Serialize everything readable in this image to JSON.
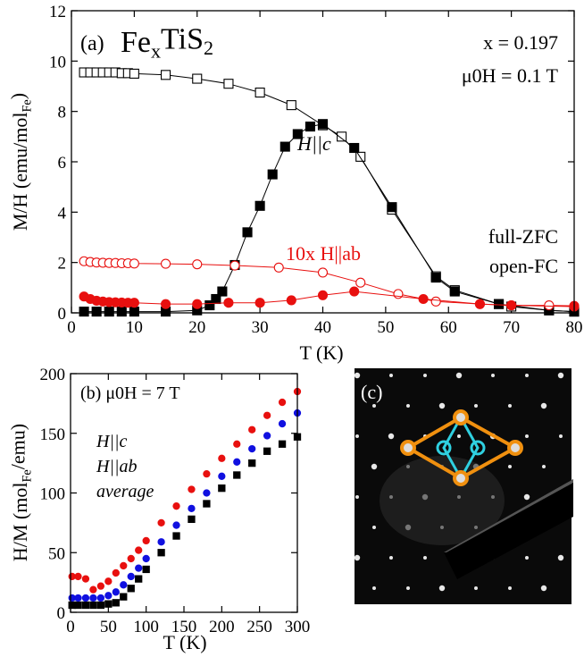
{
  "chart_data": [
    {
      "type": "scatter",
      "panel_label": "(a)",
      "title": [
        "Fe",
        "x",
        "TiS",
        "2"
      ],
      "xlabel": "T (K)",
      "ylabel": [
        "M/H (emu/mol",
        "Fe",
        ")"
      ],
      "annotations": [
        "x = 0.197",
        "μ0H = 0.1 T",
        "H||c",
        "10x H||ab",
        "full-ZFC",
        "open-FC"
      ],
      "xlim": [
        0,
        80
      ],
      "xticks": [
        0,
        10,
        20,
        30,
        40,
        50,
        60,
        70,
        80
      ],
      "ylim": [
        0,
        12
      ],
      "yticks": [
        0,
        2,
        4,
        6,
        8,
        10,
        12
      ],
      "line": true,
      "series": [
        {
          "color": "#000000",
          "marker": "square",
          "filled": false,
          "x": [
            2,
            3,
            4,
            5,
            6,
            7,
            8,
            9,
            10,
            15,
            20,
            25,
            30,
            35,
            40,
            43,
            46,
            51,
            58,
            61,
            68,
            70,
            76,
            80
          ],
          "values": [
            9.55,
            9.55,
            9.55,
            9.55,
            9.55,
            9.55,
            9.52,
            9.52,
            9.5,
            9.45,
            9.3,
            9.1,
            8.75,
            8.25,
            7.45,
            7.0,
            6.2,
            4.1,
            1.45,
            0.9,
            0.35,
            0.25,
            0.1,
            0.05
          ]
        },
        {
          "color": "#000000",
          "marker": "square",
          "filled": true,
          "x": [
            2,
            4,
            6,
            8,
            10,
            15,
            20,
            22,
            23,
            24,
            26,
            28,
            30,
            32,
            34,
            36,
            38,
            40,
            45,
            51,
            58,
            61,
            68,
            76,
            80
          ],
          "values": [
            0.05,
            0.05,
            0.05,
            0.05,
            0.05,
            0.05,
            0.1,
            0.3,
            0.55,
            0.85,
            1.9,
            3.2,
            4.25,
            5.5,
            6.6,
            7.1,
            7.4,
            7.5,
            6.55,
            4.2,
            1.4,
            0.85,
            0.35,
            0.1,
            0.05
          ]
        },
        {
          "color": "#e8100f",
          "marker": "circle",
          "filled": false,
          "x": [
            2,
            3,
            4,
            5,
            6,
            7,
            8,
            9,
            10,
            15,
            20,
            26,
            33,
            40,
            46,
            52,
            58,
            65,
            70,
            76,
            80
          ],
          "values": [
            2.05,
            2.02,
            2.0,
            1.99,
            1.98,
            1.98,
            1.97,
            1.97,
            1.96,
            1.95,
            1.93,
            1.88,
            1.8,
            1.6,
            1.2,
            0.75,
            0.45,
            0.35,
            0.3,
            0.3,
            0.28
          ]
        },
        {
          "color": "#e8100f",
          "marker": "circle",
          "filled": true,
          "x": [
            2,
            3,
            4,
            5,
            6,
            7,
            8,
            9,
            10,
            15,
            20,
            25,
            30,
            35,
            40,
            45,
            56,
            65,
            70,
            80
          ],
          "values": [
            0.65,
            0.55,
            0.48,
            0.45,
            0.43,
            0.42,
            0.41,
            0.4,
            0.4,
            0.35,
            0.35,
            0.4,
            0.4,
            0.5,
            0.7,
            0.85,
            0.55,
            0.35,
            0.3,
            0.25
          ]
        }
      ]
    },
    {
      "type": "scatter",
      "xlabel": "T (K)",
      "ylabel": [
        "H/M (mol",
        "Fe",
        "/emu)"
      ],
      "annotations": [
        "(b) μ0H = 7 T"
      ],
      "xlim": [
        0,
        300
      ],
      "xticks": [
        0,
        50,
        100,
        150,
        200,
        250,
        300
      ],
      "ylim": [
        0,
        200
      ],
      "yticks": [
        0,
        50,
        100,
        150,
        200
      ],
      "line": false,
      "series": [
        {
          "name": "H||c",
          "color": "#000000",
          "marker": "square",
          "filled": true,
          "x": [
            2,
            10,
            20,
            30,
            40,
            50,
            60,
            70,
            80,
            90,
            100,
            120,
            140,
            160,
            180,
            200,
            220,
            240,
            260,
            280,
            300
          ],
          "values": [
            6,
            6,
            6,
            6,
            6,
            7,
            8,
            13,
            20,
            28,
            36,
            50,
            64,
            78,
            91,
            104,
            115,
            125,
            135,
            141,
            147
          ]
        },
        {
          "name": "H||ab",
          "color": "#e8100f",
          "marker": "circle",
          "filled": true,
          "x": [
            2,
            10,
            20,
            30,
            40,
            50,
            60,
            70,
            80,
            90,
            100,
            120,
            140,
            160,
            180,
            200,
            220,
            240,
            260,
            280,
            300
          ],
          "values": [
            30,
            30,
            28,
            19,
            22,
            26,
            33,
            39,
            45,
            52,
            60,
            75,
            89,
            103,
            116,
            129,
            141,
            153,
            165,
            176,
            185
          ]
        },
        {
          "name": "average",
          "color": "#1010e0",
          "marker": "circle",
          "filled": true,
          "x": [
            2,
            10,
            20,
            30,
            40,
            50,
            60,
            70,
            80,
            90,
            100,
            120,
            140,
            160,
            180,
            200,
            220,
            240,
            260,
            280,
            300
          ],
          "values": [
            12,
            12,
            12,
            12,
            12,
            14,
            17,
            23,
            30,
            37,
            45,
            59,
            73,
            87,
            100,
            114,
            126,
            137,
            148,
            158,
            167
          ]
        }
      ]
    }
  ],
  "image": {
    "label": "(c)"
  }
}
